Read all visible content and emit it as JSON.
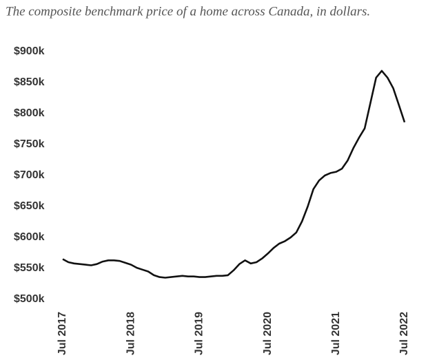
{
  "chart_data": {
    "type": "line",
    "title": "The composite benchmark price of a home across Canada, in dollars.",
    "x": [
      "2017-07",
      "2017-08",
      "2017-09",
      "2017-10",
      "2017-11",
      "2017-12",
      "2018-01",
      "2018-02",
      "2018-03",
      "2018-04",
      "2018-05",
      "2018-06",
      "2018-07",
      "2018-08",
      "2018-09",
      "2018-10",
      "2018-11",
      "2018-12",
      "2019-01",
      "2019-02",
      "2019-03",
      "2019-04",
      "2019-05",
      "2019-06",
      "2019-07",
      "2019-08",
      "2019-09",
      "2019-10",
      "2019-11",
      "2019-12",
      "2020-01",
      "2020-02",
      "2020-03",
      "2020-04",
      "2020-05",
      "2020-06",
      "2020-07",
      "2020-08",
      "2020-09",
      "2020-10",
      "2020-11",
      "2020-12",
      "2021-01",
      "2021-02",
      "2021-03",
      "2021-04",
      "2021-05",
      "2021-06",
      "2021-07",
      "2021-08",
      "2021-09",
      "2021-10",
      "2021-11",
      "2021-12",
      "2022-01",
      "2022-02",
      "2022-03",
      "2022-04",
      "2022-05",
      "2022-06",
      "2022-07"
    ],
    "series": [
      {
        "color": "#111111",
        "values": [
          565000,
          560000,
          558000,
          557000,
          556000,
          555000,
          557000,
          561000,
          563000,
          563000,
          562000,
          559000,
          556000,
          551000,
          548000,
          545000,
          539000,
          536000,
          535000,
          536000,
          537000,
          538000,
          537000,
          537000,
          536000,
          536000,
          537000,
          538000,
          538000,
          539000,
          547000,
          557000,
          563000,
          558000,
          560000,
          566000,
          574000,
          583000,
          590000,
          594000,
          600000,
          608000,
          626000,
          650000,
          678000,
          692000,
          700000,
          704000,
          706000,
          711000,
          724000,
          744000,
          761000,
          776000,
          817000,
          858000,
          869000,
          858000,
          841000,
          814000,
          786000
        ]
      }
    ],
    "xlim": [
      "2017-07",
      "2022-07"
    ],
    "xticks": [
      {
        "value": "2017-07",
        "label": "Jul 2017"
      },
      {
        "value": "2018-07",
        "label": "Jul 2018"
      },
      {
        "value": "2019-07",
        "label": "Jul 2019"
      },
      {
        "value": "2020-07",
        "label": "Jul 2020"
      },
      {
        "value": "2021-07",
        "label": "Jul 2021"
      },
      {
        "value": "2022-07",
        "label": "Jul 2022"
      }
    ],
    "ylim": [
      500000,
      900000
    ],
    "yticks": [
      {
        "value": 500000,
        "label": "$500k"
      },
      {
        "value": 550000,
        "label": "$550k"
      },
      {
        "value": 600000,
        "label": "$600k"
      },
      {
        "value": 650000,
        "label": "$650k"
      },
      {
        "value": 700000,
        "label": "$700k"
      },
      {
        "value": 750000,
        "label": "$750k"
      },
      {
        "value": 800000,
        "label": "$800k"
      },
      {
        "value": 850000,
        "label": "$850k"
      },
      {
        "value": 900000,
        "label": "$900k"
      }
    ],
    "grid": false
  }
}
